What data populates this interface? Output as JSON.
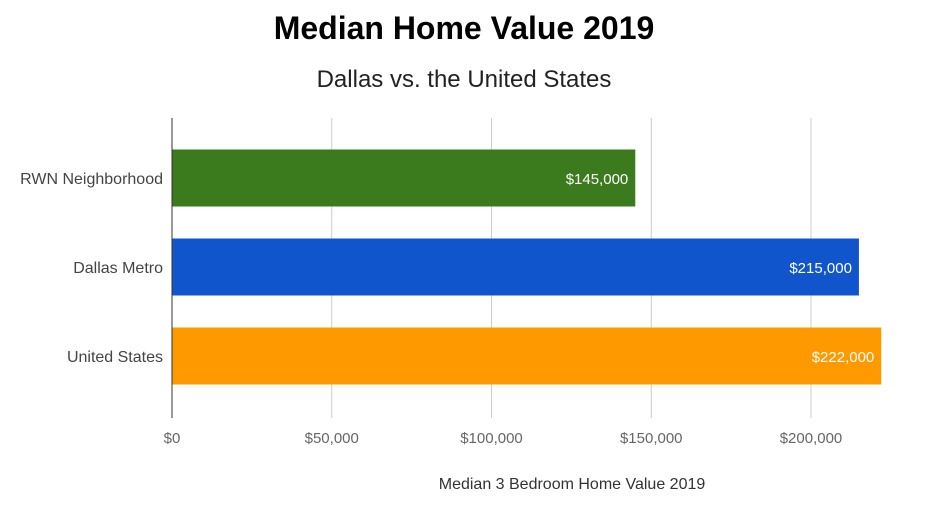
{
  "chart_data": {
    "type": "bar",
    "orientation": "horizontal",
    "title": "Median Home Value 2019",
    "subtitle": "Dallas vs. the United States",
    "xlabel": "Median 3 Bedroom Home Value 2019",
    "ylabel": "",
    "categories": [
      "RWN Neighborhood",
      "Dallas Metro",
      "United States"
    ],
    "values": [
      145000,
      215000,
      222000
    ],
    "data_labels": [
      "$145,000",
      "$215,000",
      "$222,000"
    ],
    "colors": [
      "#3b7a1d",
      "#1155cc",
      "#ff9900"
    ],
    "xlim": [
      0,
      222000
    ],
    "x_ticks": [
      0,
      50000,
      100000,
      150000,
      200000
    ],
    "x_tick_labels": [
      "$0",
      "$50,000",
      "$100,000",
      "$150,000",
      "$200,000"
    ],
    "grid": true,
    "legend": "none"
  }
}
